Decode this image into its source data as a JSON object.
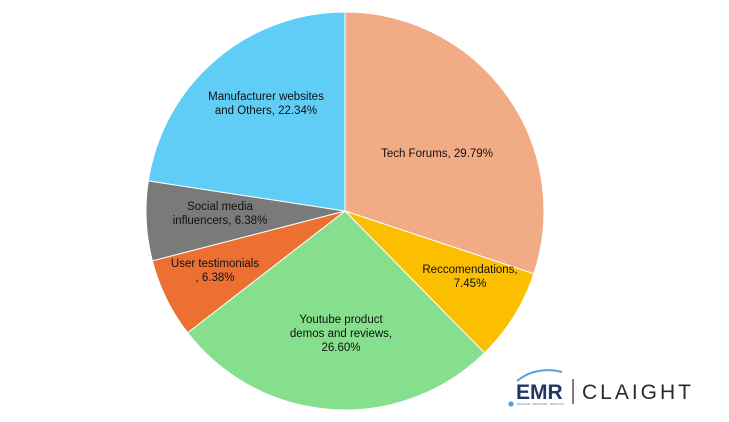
{
  "chart_data": {
    "type": "pie",
    "title": "",
    "slices": [
      {
        "label_lines": [
          "Tech Forums, 29.79%"
        ],
        "value": 29.79,
        "color": "#f1ab85"
      },
      {
        "label_lines": [
          "Reccomendations,",
          "7.45%"
        ],
        "value": 7.45,
        "color": "#fbbf00"
      },
      {
        "label_lines": [
          "Youtube product",
          "demos and reviews,",
          "26.60%"
        ],
        "value": 26.6,
        "color": "#86df8c"
      },
      {
        "label_lines": [
          "User testimonials",
          ", 6.38%"
        ],
        "value": 6.38,
        "color": "#ec7031"
      },
      {
        "label_lines": [
          "Social media",
          "influencers, 6.38%"
        ],
        "value": 6.38,
        "color": "#7a7a7a"
      },
      {
        "label_lines": [
          "Manufacturer websites",
          "and Others, 22.34%"
        ],
        "value": 22.34,
        "color": "#60cdf6"
      }
    ]
  },
  "logo": {
    "emr": "EMR",
    "tagline": "ENGAGE · MEASURE · RESULTS",
    "claight": "CLAIGHT",
    "emr_color": "#1f3864",
    "accent_color": "#5aa0d8"
  }
}
